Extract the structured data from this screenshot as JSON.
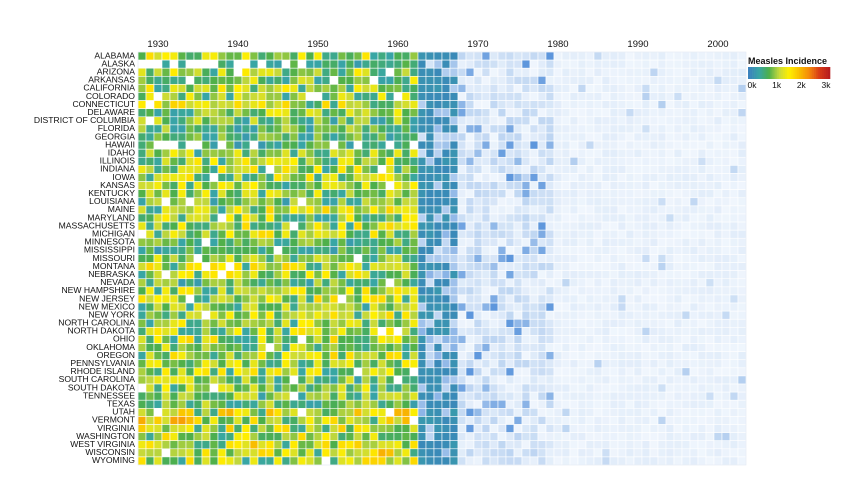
{
  "chart_data": {
    "type": "heatmap",
    "title": "",
    "xlabel": "",
    "ylabel": "",
    "x_ticks": [
      "1930",
      "1940",
      "1950",
      "1960",
      "1970",
      "1980",
      "1990",
      "2000"
    ],
    "year_range": [
      1928,
      2003
    ],
    "vaccine_year": 1963,
    "states": [
      "ALABAMA",
      "ALASKA",
      "ARIZONA",
      "ARKANSAS",
      "CALIFORNIA",
      "COLORADO",
      "CONNECTICUT",
      "DELAWARE",
      "DISTRICT OF COLUMBIA",
      "FLORIDA",
      "GEORGIA",
      "HAWAII",
      "IDAHO",
      "ILLINOIS",
      "INDIANA",
      "IOWA",
      "KANSAS",
      "KENTUCKY",
      "LOUISIANA",
      "MAINE",
      "MARYLAND",
      "MASSACHUSETTS",
      "MICHIGAN",
      "MINNESOTA",
      "MISSISSIPPI",
      "MISSOURI",
      "MONTANA",
      "NEBRASKA",
      "NEVADA",
      "NEW HAMPSHIRE",
      "NEW JERSEY",
      "NEW MEXICO",
      "NEW YORK",
      "NORTH CAROLINA",
      "NORTH DAKOTA",
      "OHIO",
      "OKLAHOMA",
      "OREGON",
      "PENNSYLVANIA",
      "RHODE ISLAND",
      "SOUTH CAROLINA",
      "SOUTH DAKOTA",
      "TENNESSEE",
      "TEXAS",
      "UTAH",
      "VERMONT",
      "VIRGINIA",
      "WASHINGTON",
      "WEST VIRGINIA",
      "WISCONSIN",
      "WYOMING"
    ],
    "state_level_pre_vaccine": [
      1000,
      500,
      950,
      900,
      1000,
      950,
      1050,
      900,
      800,
      750,
      700,
      600,
      900,
      1050,
      1000,
      1000,
      950,
      900,
      700,
      1050,
      1000,
      1050,
      1050,
      650,
      600,
      900,
      1050,
      1000,
      700,
      1050,
      1050,
      850,
      1050,
      950,
      1050,
      1050,
      900,
      1050,
      950,
      1000,
      850,
      950,
      800,
      750,
      1250,
      1300,
      1100,
      1050,
      1150,
      1200,
      1050
    ],
    "value_range": [
      0,
      3000
    ],
    "legend": {
      "title": "Measles Incidence",
      "ticks": [
        "0k",
        "1k",
        "2k",
        "3k"
      ],
      "colors": [
        "#3b82bd",
        "#38a6a5",
        "#4daf4a",
        "#c6d93c",
        "#ffef00",
        "#f9c000",
        "#f58a0a",
        "#d93d17",
        "#b81d1d"
      ],
      "position": "top-right"
    },
    "missing_color": "#ffffff",
    "grid": true
  }
}
